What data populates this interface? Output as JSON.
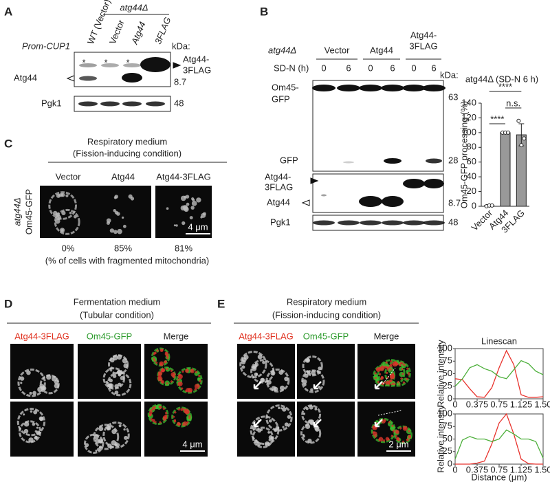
{
  "figure": {
    "A": {
      "label": "A",
      "promoter": "Prom-CUP1",
      "genotype": "atg44Δ",
      "lanes": [
        "WT (Vector)",
        "Vector",
        "Atg44",
        "3FLAG"
      ],
      "kda": "kDa:",
      "asterisks": [
        "*",
        "*",
        "*"
      ],
      "fusion": [
        "Atg44-",
        "3FLAG"
      ],
      "atg44": "Atg44",
      "m8_7": 8.7,
      "loading": "Pgk1",
      "m48": 48
    },
    "B": {
      "label": "B",
      "genotype": "atg44Δ",
      "groups": [
        [
          "Vector"
        ],
        [
          "Atg44"
        ],
        [
          "Atg44-",
          "3FLAG"
        ]
      ],
      "sdn": "SD-N (h)",
      "timepoints": [
        0,
        6,
        0,
        6,
        0,
        6
      ],
      "kda": "kDa:",
      "om45": [
        "Om45-",
        "GFP"
      ],
      "m63": 63,
      "gfp": "GFP",
      "m28": 28,
      "fusion": [
        "Atg44-",
        "3FLAG"
      ],
      "atg44": "Atg44",
      "m8_7": 8.7,
      "loading": "Pgk1",
      "m48": 48
    },
    "C": {
      "label": "C",
      "heading": [
        "Respiratory medium",
        "(Fission-inducing condition)"
      ],
      "columns": [
        "Vector",
        "Atg44",
        "Atg44-3FLAG"
      ],
      "row_label": [
        "atg44Δ",
        "Om45-GFP"
      ],
      "percentages": [
        "0%",
        "85%",
        "81%"
      ],
      "caption": "(% of cells with fragmented mitochondria)",
      "scale": "4 μm"
    },
    "D": {
      "label": "D",
      "heading": [
        "Fermentation medium",
        "(Tubular condition)"
      ],
      "columns": [
        "Atg44-3FLAG",
        "Om45-GFP",
        "Merge"
      ],
      "scale": "4 μm"
    },
    "E": {
      "label": "E",
      "heading": [
        "Respiratory medium",
        "(Fission-inducing condition)"
      ],
      "columns": [
        "Atg44-3FLAG",
        "Om45-GFP",
        "Merge"
      ],
      "scale": "2 μm"
    }
  },
  "chart_data": [
    {
      "type": "bar",
      "title": "atg44Δ (SD-N 6 h)",
      "ylabel": "Om45-GFP processing (%)",
      "categories": [
        "Vector",
        "Atg44",
        "3FLAG"
      ],
      "values": [
        1,
        100,
        97
      ],
      "errors": [
        1,
        0,
        15
      ],
      "replicates": [
        [
          0,
          1,
          1
        ],
        [
          100,
          100,
          100
        ],
        [
          116,
          83,
          92
        ]
      ],
      "color": "#999999",
      "ylim": [
        0,
        140
      ],
      "yticks": [
        0,
        20,
        40,
        60,
        80,
        100,
        120,
        140
      ],
      "annotations": [
        "****",
        "****",
        "n.s."
      ]
    },
    {
      "type": "line",
      "title": "Linescan",
      "ylabel": "Relative intensity",
      "x": [
        0,
        0.125,
        0.25,
        0.375,
        0.5,
        0.625,
        0.75,
        0.875,
        1,
        1.125,
        1.25,
        1.375,
        1.5
      ],
      "series": [
        {
          "color": "#e8322c",
          "values": [
            40,
            38,
            20,
            4,
            3,
            22,
            62,
            96,
            68,
            8,
            3,
            3,
            4
          ]
        },
        {
          "color": "#4caf3a",
          "values": [
            25,
            40,
            62,
            68,
            60,
            55,
            44,
            40,
            58,
            76,
            70,
            55,
            48
          ]
        }
      ],
      "xlim": [
        0,
        1.5
      ],
      "xticks": [
        0,
        0.375,
        0.75,
        1.125,
        {
          "value": 1.5,
          "label": "1.50"
        }
      ],
      "ylim": [
        0,
        100
      ],
      "yticks": [
        0,
        25,
        50,
        75,
        100
      ]
    },
    {
      "type": "line",
      "ylabel": "Relative intensity",
      "xlabel": "Distance (μm)",
      "x": [
        0,
        0.125,
        0.25,
        0.375,
        0.5,
        0.625,
        0.75,
        0.875,
        1,
        1.125,
        1.25,
        1.375,
        1.5
      ],
      "series": [
        {
          "color": "#e8322c",
          "values": [
            0,
            0,
            0,
            2,
            6,
            40,
            82,
            100,
            60,
            10,
            1,
            0,
            0
          ]
        },
        {
          "color": "#4caf3a",
          "values": [
            10,
            48,
            55,
            50,
            50,
            45,
            50,
            68,
            60,
            50,
            50,
            45,
            12
          ]
        }
      ],
      "xlim": [
        0,
        1.5
      ],
      "xticks": [
        0,
        0.375,
        0.75,
        1.125,
        {
          "value": 1.5,
          "label": "1.50"
        }
      ],
      "ylim": [
        0,
        100
      ],
      "yticks": [
        0,
        25,
        50,
        75,
        100
      ]
    }
  ]
}
